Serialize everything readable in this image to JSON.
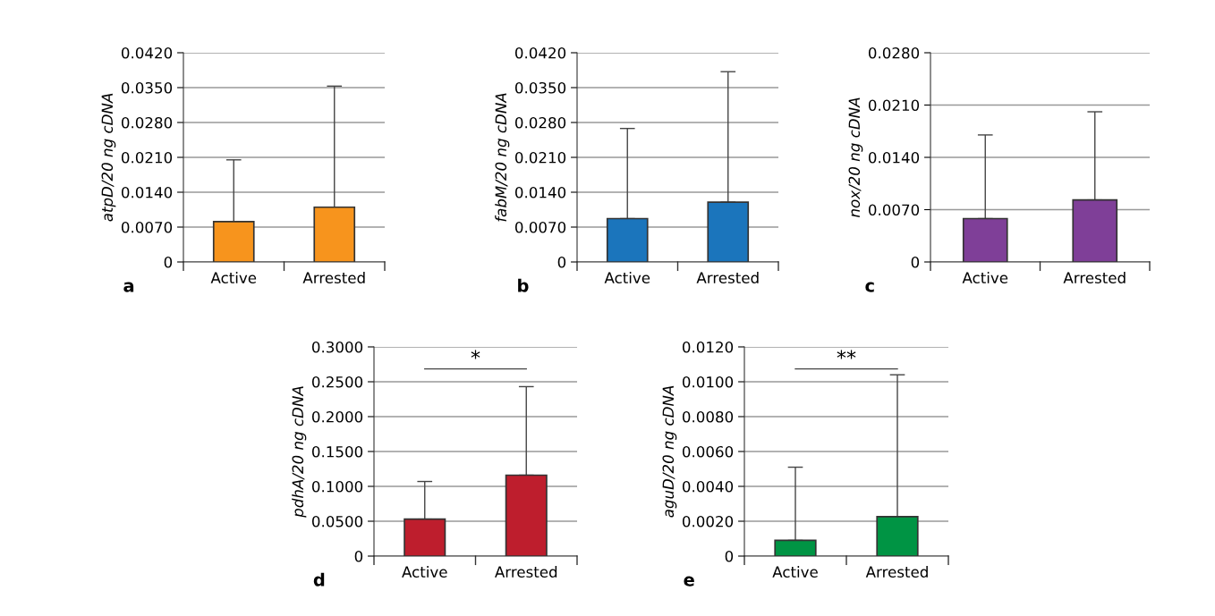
{
  "chart_data": [
    {
      "type": "bar",
      "ylabel": "atpD/20 ng cDNA",
      "categories": [
        "Active",
        "Arrested"
      ],
      "series": [
        {
          "color": "#f7941d",
          "values": [
            0.0081,
            0.011
          ],
          "errors": [
            [
              0.0081,
              0.0205
            ],
            [
              0.011,
              0.0353
            ]
          ]
        }
      ],
      "ylim": [
        0,
        0.042
      ],
      "yticks": [
        0,
        {
          "value": 0.007,
          "label": "0.0070"
        },
        {
          "value": 0.014,
          "label": "0.0140"
        },
        {
          "value": 0.021,
          "label": "0.0210"
        },
        {
          "value": 0.028,
          "label": "0.0280"
        },
        {
          "value": 0.035,
          "label": "0.0350"
        },
        {
          "value": 0.042,
          "label": "0.0420"
        }
      ],
      "grid": "y",
      "legend": false,
      "annotations": [
        "a"
      ]
    },
    {
      "type": "bar",
      "ylabel": "fabM/20 ng cDNA",
      "categories": [
        "Active",
        "Arrested"
      ],
      "series": [
        {
          "color": "#1b75bc",
          "values": [
            0.0087,
            0.012
          ],
          "errors": [
            [
              0.0087,
              0.0268
            ],
            [
              0.012,
              0.0382
            ]
          ]
        }
      ],
      "ylim": [
        0,
        0.042
      ],
      "yticks": [
        0,
        {
          "value": 0.007,
          "label": "0.0070"
        },
        {
          "value": 0.014,
          "label": "0.0140"
        },
        {
          "value": 0.021,
          "label": "0.0210"
        },
        {
          "value": 0.028,
          "label": "0.0280"
        },
        {
          "value": 0.035,
          "label": "0.0350"
        },
        {
          "value": 0.042,
          "label": "0.0420"
        }
      ],
      "grid": "y",
      "legend": false,
      "annotations": [
        "b"
      ]
    },
    {
      "type": "bar",
      "ylabel": "nox/20 ng cDNA",
      "categories": [
        "Active",
        "Arrested"
      ],
      "series": [
        {
          "color": "#7f3f98",
          "values": [
            0.0058,
            0.0083
          ],
          "errors": [
            [
              0.0058,
              0.017
            ],
            [
              0.0083,
              0.0201
            ]
          ]
        }
      ],
      "ylim": [
        0,
        0.028
      ],
      "yticks": [
        0,
        {
          "value": 0.007,
          "label": "0.0070"
        },
        {
          "value": 0.014,
          "label": "0.0140"
        },
        {
          "value": 0.021,
          "label": "0.0210"
        },
        {
          "value": 0.028,
          "label": "0.0280"
        }
      ],
      "grid": "y",
      "legend": false,
      "annotations": [
        "c"
      ]
    },
    {
      "type": "bar",
      "ylabel": "pdhA/20 ng cDNA",
      "categories": [
        "Active",
        "Arrested"
      ],
      "series": [
        {
          "color": "#be1e2d",
          "values": [
            0.053,
            0.116
          ],
          "errors": [
            [
              0.053,
              0.107
            ],
            [
              0.116,
              0.243
            ]
          ]
        }
      ],
      "ylim": [
        0,
        0.3
      ],
      "yticks": [
        0,
        {
          "value": 0.05,
          "label": "0.0500"
        },
        {
          "value": 0.1,
          "label": "0.1000"
        },
        {
          "value": 0.15,
          "label": "0.1500"
        },
        {
          "value": 0.2,
          "label": "0.2000"
        },
        {
          "value": 0.25,
          "label": "0.2500"
        },
        {
          "value": 0.3,
          "label": "0.3000"
        }
      ],
      "grid": "y",
      "legend": false,
      "annotations": [
        "d",
        "*"
      ]
    },
    {
      "type": "bar",
      "ylabel": "aguD/20 ng cDNA",
      "categories": [
        "Active",
        "Arrested"
      ],
      "series": [
        {
          "color": "#009444",
          "values": [
            0.0009,
            0.00226
          ],
          "errors": [
            [
              0.0009,
              0.0051
            ],
            [
              0.00226,
              0.0104
            ]
          ]
        }
      ],
      "ylim": [
        0,
        0.012
      ],
      "yticks": [
        0,
        {
          "value": 0.002,
          "label": "0.0020"
        },
        {
          "value": 0.004,
          "label": "0.0040"
        },
        {
          "value": 0.006,
          "label": "0.0060"
        },
        {
          "value": 0.008,
          "label": "0.0080"
        },
        {
          "value": 0.01,
          "label": "0.0100"
        },
        {
          "value": 0.012,
          "label": "0.0120"
        }
      ],
      "grid": "y",
      "legend": false,
      "annotations": [
        "e",
        "**"
      ]
    }
  ]
}
